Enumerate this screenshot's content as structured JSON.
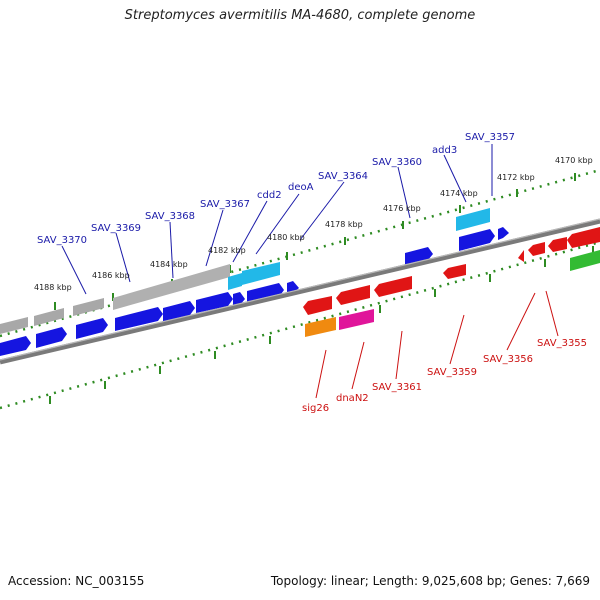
{
  "title": "Streptomyces avermitilis MA-4680, complete genome",
  "accession": "Accession: NC_003155",
  "summary": "Topology: linear; Length: 9,025,608 bp; Genes: 7,669",
  "colors": {
    "forward_label": "#1a1aa8",
    "reverse_label": "#cc1111",
    "backbone": "#7a7a7a",
    "ruler": "#2e8b22",
    "gene_blue": "#1515e0",
    "gene_cyan": "#22b8e8",
    "gene_gray": "#a8a8a8",
    "gene_red": "#e01515",
    "gene_orange": "#f08a10",
    "gene_magenta": "#e0159a",
    "gene_green": "#33bb33"
  },
  "ruler_ticks": [
    "4170 kbp",
    "4172 kbp",
    "4174 kbp",
    "4176 kbp",
    "4178 kbp",
    "4180 kbp",
    "4182 kbp",
    "4184 kbp",
    "4186 kbp",
    "4188 kbp"
  ],
  "forward_labels": [
    "SAV_3357",
    "add3",
    "SAV_3360",
    "SAV_3364",
    "deoA",
    "cdd2",
    "SAV_3367",
    "SAV_3368",
    "SAV_3369",
    "SAV_3370"
  ],
  "reverse_labels": [
    "sig26",
    "dnaN2",
    "SAV_3361",
    "SAV_3359",
    "SAV_3356",
    "SAV_3355"
  ]
}
